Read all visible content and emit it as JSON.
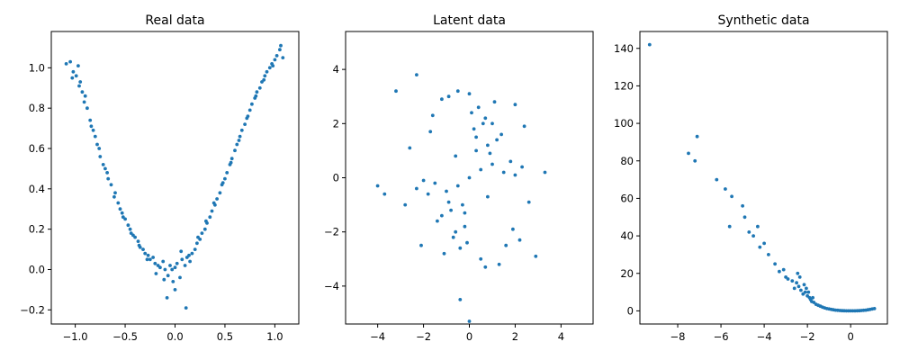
{
  "chart_data": [
    {
      "type": "scatter",
      "title": "Real data",
      "xlabel": "",
      "ylabel": "",
      "xlim": [
        -1.24,
        1.24
      ],
      "ylim": [
        -0.27,
        1.18
      ],
      "xticks": [
        -1.0,
        -0.5,
        0.0,
        0.5,
        1.0
      ],
      "xtick_labels": [
        "−1.0",
        "−0.5",
        "0.0",
        "0.5",
        "1.0"
      ],
      "yticks": [
        -0.2,
        0.0,
        0.2,
        0.4,
        0.6,
        0.8,
        1.0
      ],
      "ytick_labels": [
        "−0.2",
        "0.0",
        "0.2",
        "0.4",
        "0.6",
        "0.8",
        "1.0"
      ],
      "grid": false,
      "color": "#1f77b4",
      "x": [
        -1.09,
        -1.05,
        -1.02,
        -0.99,
        -0.97,
        -0.95,
        -0.93,
        -0.9,
        -0.88,
        -0.85,
        -0.82,
        -0.8,
        -0.78,
        -0.75,
        -0.72,
        -0.7,
        -0.67,
        -0.64,
        -0.6,
        -0.57,
        -0.55,
        -0.52,
        -0.5,
        -0.47,
        -0.45,
        -0.42,
        -0.4,
        -0.37,
        -0.35,
        -0.32,
        -0.3,
        -0.27,
        -0.25,
        -0.22,
        -0.2,
        -0.17,
        -0.15,
        -0.12,
        -0.1,
        -0.07,
        -0.05,
        -0.02,
        0.0,
        0.02,
        0.05,
        0.07,
        0.1,
        0.12,
        0.15,
        0.17,
        0.2,
        0.22,
        0.25,
        0.27,
        0.3,
        0.32,
        0.35,
        0.37,
        0.4,
        0.42,
        0.45,
        0.47,
        0.5,
        0.52,
        0.55,
        0.57,
        0.6,
        0.62,
        0.65,
        0.67,
        0.7,
        0.72,
        0.75,
        0.77,
        0.8,
        0.82,
        0.85,
        0.87,
        0.9,
        0.92,
        0.95,
        0.97,
        1.0,
        1.02,
        1.05,
        1.08,
        -1.03,
        -0.96,
        -0.91,
        -0.84,
        -0.76,
        -0.68,
        -0.61,
        -0.53,
        -0.44,
        -0.36,
        -0.28,
        -0.19,
        -0.11,
        -0.03,
        0.06,
        0.14,
        0.23,
        0.31,
        0.39,
        0.48,
        0.56,
        0.64,
        0.73,
        0.81,
        0.89,
        0.98,
        1.06,
        0.11,
        -0.08,
        0.0
      ],
      "y": [
        1.02,
        1.03,
        0.98,
        0.96,
        1.01,
        0.93,
        0.88,
        0.86,
        0.8,
        0.74,
        0.69,
        0.66,
        0.62,
        0.56,
        0.52,
        0.5,
        0.45,
        0.42,
        0.38,
        0.33,
        0.3,
        0.26,
        0.25,
        0.22,
        0.2,
        0.17,
        0.16,
        0.14,
        0.11,
        0.1,
        0.08,
        0.07,
        0.05,
        0.06,
        0.03,
        0.02,
        0.01,
        0.04,
        0.0,
        -0.03,
        0.02,
        -0.06,
        0.01,
        0.03,
        -0.04,
        0.05,
        0.02,
        0.06,
        0.04,
        0.08,
        0.1,
        0.13,
        0.15,
        0.18,
        0.2,
        0.23,
        0.26,
        0.29,
        0.32,
        0.35,
        0.38,
        0.42,
        0.45,
        0.48,
        0.52,
        0.55,
        0.59,
        0.62,
        0.66,
        0.69,
        0.72,
        0.75,
        0.79,
        0.82,
        0.85,
        0.88,
        0.9,
        0.93,
        0.96,
        0.98,
        1.0,
        1.02,
        1.04,
        1.06,
        1.09,
        1.05,
        0.95,
        0.91,
        0.83,
        0.71,
        0.6,
        0.48,
        0.36,
        0.28,
        0.18,
        0.12,
        0.05,
        -0.02,
        -0.05,
        0.0,
        0.09,
        0.07,
        0.16,
        0.24,
        0.33,
        0.43,
        0.53,
        0.64,
        0.76,
        0.86,
        0.94,
        1.01,
        1.11,
        -0.19,
        -0.14,
        -0.1
      ]
    },
    {
      "type": "scatter",
      "title": "Latent data",
      "xlabel": "",
      "ylabel": "",
      "xlim": [
        -5.4,
        5.4
      ],
      "ylim": [
        -5.4,
        5.4
      ],
      "xticks": [
        -4,
        -2,
        0,
        2,
        4
      ],
      "xtick_labels": [
        "−4",
        "−2",
        "0",
        "2",
        "4"
      ],
      "yticks": [
        -4,
        -2,
        0,
        2,
        4
      ],
      "ytick_labels": [
        "−4",
        "−2",
        "0",
        "2",
        "4"
      ],
      "grid": false,
      "color": "#1f77b4",
      "x": [
        0.0,
        0.5,
        -0.5,
        1.0,
        -1.0,
        0.3,
        -0.3,
        0.8,
        -0.8,
        1.5,
        -1.5,
        0.2,
        -0.2,
        1.2,
        -1.2,
        0.6,
        -0.6,
        1.8,
        -1.8,
        0.1,
        -0.1,
        0.9,
        -0.9,
        1.4,
        -1.4,
        0.4,
        -0.4,
        2.0,
        -2.0,
        0.7,
        -0.7,
        1.1,
        -1.1,
        2.3,
        -2.3,
        0.0,
        0.5,
        -0.5,
        1.6,
        -1.6,
        2.6,
        -2.6,
        3.3,
        -3.7,
        -4.0,
        -2.3,
        -3.2,
        0.0,
        -0.4,
        2.9,
        2.0,
        -1.2,
        0.7,
        1.3,
        -0.9,
        2.4,
        -2.8,
        0.3,
        -0.2,
        1.9,
        -1.7,
        0.8,
        -0.6,
        2.2,
        -2.1,
        1.0
      ],
      "y": [
        0.0,
        0.3,
        -0.3,
        0.5,
        -0.5,
        1.0,
        -1.0,
        1.2,
        -1.2,
        0.2,
        -0.2,
        1.8,
        -1.8,
        1.4,
        -1.4,
        2.0,
        -2.0,
        0.6,
        -0.6,
        2.4,
        -2.4,
        0.9,
        -0.9,
        1.6,
        -1.6,
        2.6,
        -2.6,
        0.1,
        -0.1,
        2.2,
        -2.2,
        2.8,
        -2.8,
        0.4,
        -0.4,
        3.1,
        -3.0,
        3.2,
        -2.5,
        2.3,
        -0.9,
        1.1,
        0.2,
        -0.6,
        -0.3,
        3.8,
        3.2,
        -5.3,
        -4.5,
        -2.9,
        2.7,
        2.9,
        -3.3,
        -3.2,
        3.0,
        1.9,
        -1.0,
        1.5,
        -1.3,
        -1.9,
        1.7,
        -0.7,
        0.8,
        -2.3,
        -2.5,
        2.0
      ]
    },
    {
      "type": "scatter",
      "title": "Synthetic data",
      "xlabel": "",
      "ylabel": "",
      "xlim": [
        -9.75,
        1.7
      ],
      "ylim": [
        -7.0,
        149
      ],
      "xticks": [
        -8,
        -6,
        -4,
        -2,
        0
      ],
      "xtick_labels": [
        "−8",
        "−6",
        "−4",
        "−2",
        "0"
      ],
      "yticks": [
        0,
        20,
        40,
        60,
        80,
        100,
        120,
        140
      ],
      "ytick_labels": [
        "0",
        "20",
        "40",
        "60",
        "80",
        "100",
        "120",
        "140"
      ],
      "grid": false,
      "color": "#1f77b4",
      "x": [
        -9.3,
        -7.5,
        -7.1,
        -7.2,
        -6.2,
        -5.8,
        -5.5,
        -5.6,
        -5.0,
        -4.9,
        -4.7,
        -4.5,
        -4.3,
        -4.0,
        -4.2,
        -3.8,
        -3.5,
        -3.3,
        -3.1,
        -3.0,
        -2.9,
        -2.7,
        -2.6,
        -2.5,
        -2.4,
        -2.3,
        -2.2,
        -2.1,
        -2.0,
        -1.9,
        -1.85,
        -1.8,
        -1.7,
        -1.6,
        -1.5,
        -1.4,
        -1.3,
        -1.2,
        -1.1,
        -1.0,
        -0.9,
        -0.8,
        -0.7,
        -0.6,
        -0.5,
        -0.4,
        -0.3,
        -0.2,
        -0.1,
        0.0,
        0.1,
        0.2,
        0.3,
        0.4,
        0.5,
        0.6,
        0.7,
        0.8,
        0.9,
        1.0,
        1.1,
        -2.05,
        -2.15,
        -1.95,
        -1.75,
        -2.35,
        -2.45
      ],
      "y": [
        142,
        84,
        93,
        80,
        70,
        65,
        61,
        45,
        56,
        50,
        42,
        40,
        45,
        36,
        34,
        30,
        25,
        21,
        22,
        18,
        17,
        16,
        12,
        15,
        13,
        11,
        9,
        10,
        8,
        7,
        6,
        5,
        4.5,
        3.5,
        3,
        2.5,
        2,
        1.6,
        1.2,
        1.0,
        0.8,
        0.6,
        0.4,
        0.3,
        0.2,
        0.1,
        0.05,
        0.0,
        0.0,
        0.0,
        0.0,
        0.0,
        0.05,
        0.1,
        0.2,
        0.3,
        0.4,
        0.6,
        0.8,
        1.0,
        1.2,
        12,
        14,
        10,
        7,
        18,
        20
      ]
    }
  ]
}
